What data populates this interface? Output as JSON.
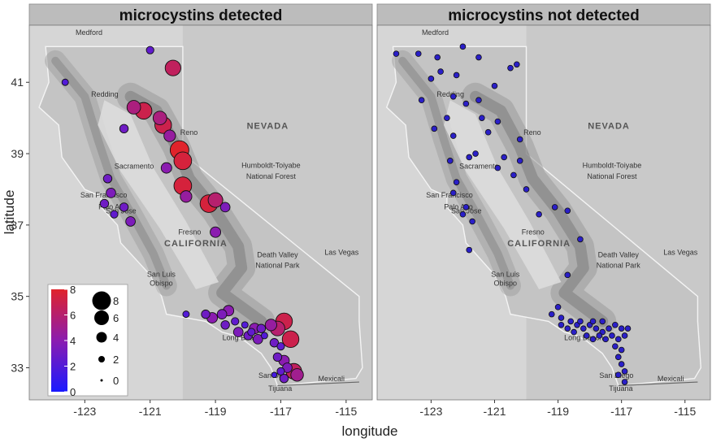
{
  "chart_data": {
    "type": "scatter",
    "xlabel": "longitude",
    "ylabel": "latitude",
    "xlim": [
      -124.7,
      -114.2
    ],
    "ylim": [
      32.1,
      42.6
    ],
    "x_ticks": [
      -123,
      -121,
      -119,
      -117,
      -115
    ],
    "x_tick_labels": [
      "-123",
      "-121",
      "-119",
      "-117",
      "-115"
    ],
    "y_ticks": [
      33,
      35,
      37,
      39,
      41
    ],
    "y_tick_labels": [
      "33",
      "35",
      "37",
      "39",
      "41"
    ],
    "panels": [
      {
        "title": "microcystins detected",
        "points": [
          {
            "lon": -120.3,
            "lat": 41.4,
            "value": 6.5
          },
          {
            "lon": -121.0,
            "lat": 41.9,
            "value": 2.5
          },
          {
            "lon": -123.6,
            "lat": 41.0,
            "value": 2.0
          },
          {
            "lon": -121.2,
            "lat": 40.2,
            "value": 7.0
          },
          {
            "lon": -121.5,
            "lat": 40.3,
            "value": 5.5
          },
          {
            "lon": -120.6,
            "lat": 39.8,
            "value": 7.0
          },
          {
            "lon": -120.7,
            "lat": 40.0,
            "value": 5.5
          },
          {
            "lon": -121.8,
            "lat": 39.7,
            "value": 3.0
          },
          {
            "lon": -120.1,
            "lat": 39.1,
            "value": 8.0
          },
          {
            "lon": -120.0,
            "lat": 38.8,
            "value": 7.5
          },
          {
            "lon": -120.4,
            "lat": 39.5,
            "value": 4.5
          },
          {
            "lon": -120.5,
            "lat": 38.6,
            "value": 4.0
          },
          {
            "lon": -120.0,
            "lat": 38.1,
            "value": 7.5
          },
          {
            "lon": -119.9,
            "lat": 37.8,
            "value": 4.5
          },
          {
            "lon": -119.2,
            "lat": 37.6,
            "value": 7.5
          },
          {
            "lon": -119.0,
            "lat": 37.7,
            "value": 6.0
          },
          {
            "lon": -118.7,
            "lat": 37.5,
            "value": 3.5
          },
          {
            "lon": -122.3,
            "lat": 38.3,
            "value": 3.0
          },
          {
            "lon": -122.2,
            "lat": 37.9,
            "value": 3.5
          },
          {
            "lon": -122.4,
            "lat": 37.6,
            "value": 3.0
          },
          {
            "lon": -122.1,
            "lat": 37.3,
            "value": 2.5
          },
          {
            "lon": -121.8,
            "lat": 37.5,
            "value": 3.0
          },
          {
            "lon": -121.6,
            "lat": 37.1,
            "value": 3.5
          },
          {
            "lon": -119.0,
            "lat": 36.8,
            "value": 4.0
          },
          {
            "lon": -119.9,
            "lat": 34.5,
            "value": 2.0
          },
          {
            "lon": -119.3,
            "lat": 34.5,
            "value": 3.0
          },
          {
            "lon": -119.1,
            "lat": 34.4,
            "value": 4.0
          },
          {
            "lon": -118.8,
            "lat": 34.5,
            "value": 3.5
          },
          {
            "lon": -118.6,
            "lat": 34.6,
            "value": 4.0
          },
          {
            "lon": -118.7,
            "lat": 34.2,
            "value": 3.0
          },
          {
            "lon": -118.4,
            "lat": 34.3,
            "value": 2.5
          },
          {
            "lon": -118.3,
            "lat": 34.0,
            "value": 3.5
          },
          {
            "lon": -118.1,
            "lat": 34.2,
            "value": 2.0
          },
          {
            "lon": -118.0,
            "lat": 33.9,
            "value": 3.0
          },
          {
            "lon": -117.9,
            "lat": 34.0,
            "value": 2.5
          },
          {
            "lon": -117.8,
            "lat": 34.1,
            "value": 4.0
          },
          {
            "lon": -117.6,
            "lat": 34.1,
            "value": 3.0
          },
          {
            "lon": -117.7,
            "lat": 33.8,
            "value": 3.5
          },
          {
            "lon": -117.5,
            "lat": 33.9,
            "value": 2.0
          },
          {
            "lon": -117.3,
            "lat": 34.2,
            "value": 4.5
          },
          {
            "lon": -117.1,
            "lat": 34.1,
            "value": 6.0
          },
          {
            "lon": -116.9,
            "lat": 34.3,
            "value": 7.0
          },
          {
            "lon": -117.2,
            "lat": 33.7,
            "value": 3.0
          },
          {
            "lon": -116.7,
            "lat": 33.8,
            "value": 7.0
          },
          {
            "lon": -117.0,
            "lat": 33.6,
            "value": 2.5
          },
          {
            "lon": -117.1,
            "lat": 33.3,
            "value": 3.0
          },
          {
            "lon": -116.9,
            "lat": 33.2,
            "value": 4.0
          },
          {
            "lon": -116.8,
            "lat": 33.0,
            "value": 3.5
          },
          {
            "lon": -117.0,
            "lat": 32.9,
            "value": 2.5
          },
          {
            "lon": -116.6,
            "lat": 32.9,
            "value": 6.5
          },
          {
            "lon": -116.5,
            "lat": 32.8,
            "value": 5.0
          },
          {
            "lon": -117.2,
            "lat": 32.8,
            "value": 1.5
          },
          {
            "lon": -116.9,
            "lat": 32.7,
            "value": 3.0
          }
        ]
      },
      {
        "title": "microcystins not detected",
        "points": [
          {
            "lon": -124.1,
            "lat": 41.8
          },
          {
            "lon": -123.4,
            "lat": 41.8
          },
          {
            "lon": -122.8,
            "lat": 41.7
          },
          {
            "lon": -122.0,
            "lat": 42.0
          },
          {
            "lon": -121.5,
            "lat": 41.7
          },
          {
            "lon": -120.5,
            "lat": 41.4
          },
          {
            "lon": -120.3,
            "lat": 41.5
          },
          {
            "lon": -122.7,
            "lat": 41.3
          },
          {
            "lon": -122.2,
            "lat": 41.2
          },
          {
            "lon": -123.0,
            "lat": 41.1
          },
          {
            "lon": -121.0,
            "lat": 40.9
          },
          {
            "lon": -122.3,
            "lat": 40.6
          },
          {
            "lon": -123.3,
            "lat": 40.5
          },
          {
            "lon": -121.9,
            "lat": 40.4
          },
          {
            "lon": -121.5,
            "lat": 40.5
          },
          {
            "lon": -122.5,
            "lat": 40.0
          },
          {
            "lon": -121.4,
            "lat": 40.0
          },
          {
            "lon": -120.9,
            "lat": 39.9
          },
          {
            "lon": -122.9,
            "lat": 39.7
          },
          {
            "lon": -122.3,
            "lat": 39.5
          },
          {
            "lon": -121.2,
            "lat": 39.6
          },
          {
            "lon": -120.2,
            "lat": 39.4
          },
          {
            "lon": -121.6,
            "lat": 39.0
          },
          {
            "lon": -121.8,
            "lat": 38.9
          },
          {
            "lon": -120.7,
            "lat": 38.9
          },
          {
            "lon": -120.2,
            "lat": 38.8
          },
          {
            "lon": -122.4,
            "lat": 38.8
          },
          {
            "lon": -120.4,
            "lat": 38.4
          },
          {
            "lon": -120.9,
            "lat": 38.6
          },
          {
            "lon": -122.2,
            "lat": 38.2
          },
          {
            "lon": -120.0,
            "lat": 38.0
          },
          {
            "lon": -122.3,
            "lat": 37.9
          },
          {
            "lon": -121.9,
            "lat": 37.5
          },
          {
            "lon": -122.0,
            "lat": 37.3
          },
          {
            "lon": -121.7,
            "lat": 37.1
          },
          {
            "lon": -119.6,
            "lat": 37.3
          },
          {
            "lon": -119.1,
            "lat": 37.5
          },
          {
            "lon": -118.7,
            "lat": 37.4
          },
          {
            "lon": -118.3,
            "lat": 36.6
          },
          {
            "lon": -118.7,
            "lat": 35.6
          },
          {
            "lon": -121.8,
            "lat": 36.3
          },
          {
            "lon": -119.0,
            "lat": 34.7
          },
          {
            "lon": -119.2,
            "lat": 34.5
          },
          {
            "lon": -118.9,
            "lat": 34.4
          },
          {
            "lon": -118.6,
            "lat": 34.3
          },
          {
            "lon": -118.4,
            "lat": 34.2
          },
          {
            "lon": -118.2,
            "lat": 34.1
          },
          {
            "lon": -118.0,
            "lat": 34.2
          },
          {
            "lon": -117.8,
            "lat": 34.1
          },
          {
            "lon": -117.6,
            "lat": 34.0
          },
          {
            "lon": -117.4,
            "lat": 34.1
          },
          {
            "lon": -117.2,
            "lat": 34.2
          },
          {
            "lon": -117.0,
            "lat": 34.1
          },
          {
            "lon": -116.8,
            "lat": 34.1
          },
          {
            "lon": -118.5,
            "lat": 34.0
          },
          {
            "lon": -118.1,
            "lat": 33.9
          },
          {
            "lon": -117.9,
            "lat": 33.8
          },
          {
            "lon": -117.7,
            "lat": 33.9
          },
          {
            "lon": -117.5,
            "lat": 33.8
          },
          {
            "lon": -117.3,
            "lat": 33.9
          },
          {
            "lon": -117.1,
            "lat": 33.8
          },
          {
            "lon": -116.9,
            "lat": 33.9
          },
          {
            "lon": -117.2,
            "lat": 33.6
          },
          {
            "lon": -117.0,
            "lat": 33.5
          },
          {
            "lon": -117.1,
            "lat": 33.3
          },
          {
            "lon": -117.0,
            "lat": 33.1
          },
          {
            "lon": -116.9,
            "lat": 32.9
          },
          {
            "lon": -117.1,
            "lat": 32.8
          },
          {
            "lon": -116.9,
            "lat": 32.6
          },
          {
            "lon": -118.3,
            "lat": 34.3
          },
          {
            "lon": -117.9,
            "lat": 34.3
          },
          {
            "lon": -117.6,
            "lat": 34.3
          },
          {
            "lon": -118.7,
            "lat": 34.1
          },
          {
            "lon": -118.9,
            "lat": 34.2
          }
        ]
      }
    ],
    "legend": {
      "placement": "bottom-left",
      "colorbar": {
        "min": 0,
        "max": 8,
        "ticks": [
          0,
          2,
          4,
          6,
          8
        ],
        "tick_labels": [
          "0",
          "2",
          "4",
          "6",
          "8"
        ],
        "low_color": "#1a1aff",
        "mid_color": "#8b1cb0",
        "high_color": "#e0232b"
      },
      "size": {
        "values": [
          8,
          6,
          4,
          2,
          0
        ],
        "labels": [
          "8",
          "6",
          "4",
          "2",
          "0"
        ]
      }
    },
    "not_detected_color": "#2a1fc8"
  },
  "map": {
    "places": [
      {
        "name": "Medford",
        "lon": -122.87,
        "lat": 42.33
      },
      {
        "name": "Redding",
        "lon": -122.39,
        "lat": 40.59
      },
      {
        "name": "Reno",
        "lon": -119.81,
        "lat": 39.53
      },
      {
        "name": "NEVADA",
        "lon": -117.4,
        "lat": 39.7
      },
      {
        "name": "Sacramento",
        "lon": -121.49,
        "lat": 38.58
      },
      {
        "name": "Humboldt-Toiyabe",
        "lon": -117.3,
        "lat": 38.6
      },
      {
        "name": "National Forest",
        "lon": -117.3,
        "lat": 38.3
      },
      {
        "name": "San Francisco",
        "lon": -122.42,
        "lat": 37.77
      },
      {
        "name": "Palo Alto",
        "lon": -122.14,
        "lat": 37.44
      },
      {
        "name": "San Jose",
        "lon": -121.89,
        "lat": 37.33
      },
      {
        "name": "Fresno",
        "lon": -119.79,
        "lat": 36.74
      },
      {
        "name": "CALIFORNIA",
        "lon": -119.6,
        "lat": 36.4
      },
      {
        "name": "Death Valley",
        "lon": -117.1,
        "lat": 36.1
      },
      {
        "name": "National Park",
        "lon": -117.1,
        "lat": 35.8
      },
      {
        "name": "Las Vegas",
        "lon": -115.14,
        "lat": 36.17
      },
      {
        "name": "San Luis",
        "lon": -120.66,
        "lat": 35.55
      },
      {
        "name": "Obispo",
        "lon": -120.66,
        "lat": 35.3
      },
      {
        "name": "Long Beach",
        "lon": -118.19,
        "lat": 33.77
      },
      {
        "name": "San Diego",
        "lon": -117.16,
        "lat": 32.72
      },
      {
        "name": "Mexicali",
        "lon": -115.45,
        "lat": 32.62
      },
      {
        "name": "Tijuana",
        "lon": -117.02,
        "lat": 32.35
      }
    ]
  }
}
